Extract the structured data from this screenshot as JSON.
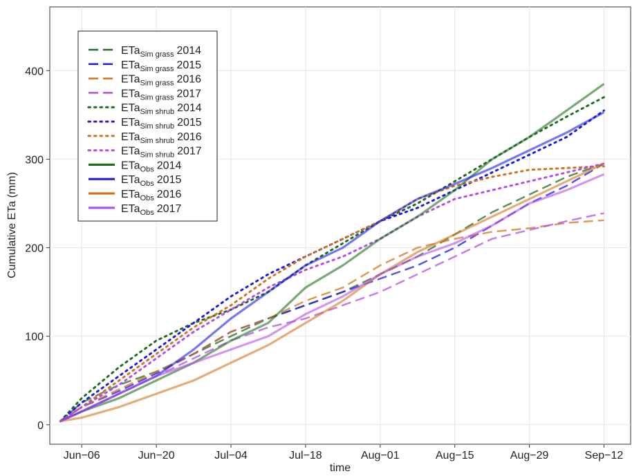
{
  "chart_data": {
    "type": "line",
    "x_label": "time",
    "y_label": "Cumulative ETa (mm)",
    "x": [
      "06-02",
      "06-06",
      "06-13",
      "06-20",
      "06-27",
      "07-04",
      "07-11",
      "07-18",
      "07-25",
      "08-01",
      "08-08",
      "08-15",
      "08-22",
      "08-29",
      "09-05",
      "09-12"
    ],
    "xlim": [
      "05-31",
      "09-17"
    ],
    "xticks": [
      {
        "value": "06-06",
        "label": "Jun−06"
      },
      {
        "value": "06-20",
        "label": "Jun−20"
      },
      {
        "value": "07-04",
        "label": "Jul−04"
      },
      {
        "value": "07-18",
        "label": "Jul−18"
      },
      {
        "value": "08-01",
        "label": "Aug−01"
      },
      {
        "value": "08-15",
        "label": "Aug−15"
      },
      {
        "value": "08-29",
        "label": "Aug−29"
      },
      {
        "value": "09-12",
        "label": "Sep−12"
      }
    ],
    "ylim": [
      -22,
      472
    ],
    "yticks": [
      0,
      100,
      200,
      300,
      400
    ],
    "grid": true,
    "legend": "top-left",
    "series": [
      {
        "name": "ETa",
        "name_sub": "Sim grass",
        "name_suffix": "2014",
        "color": "#1f6e1f",
        "style": "dashed",
        "values": [
          4,
          25,
          45,
          60,
          80,
          100,
          120,
          135,
          150,
          170,
          190,
          215,
          240,
          260,
          280,
          295
        ]
      },
      {
        "name": "ETa",
        "name_sub": "Sim grass",
        "name_suffix": "2015",
        "color": "#1c1ce6",
        "style": "dashed",
        "values": [
          4,
          20,
          38,
          58,
          80,
          105,
          120,
          135,
          150,
          165,
          180,
          200,
          225,
          250,
          270,
          295
        ]
      },
      {
        "name": "ETa",
        "name_sub": "Sim grass",
        "name_suffix": "2016",
        "color": "#d2741e",
        "style": "dashed",
        "values": [
          4,
          20,
          40,
          60,
          80,
          105,
          120,
          140,
          155,
          180,
          200,
          210,
          218,
          222,
          228,
          231
        ]
      },
      {
        "name": "ETa",
        "name_sub": "Sim grass",
        "name_suffix": "2017",
        "color": "#b44ee6",
        "style": "dashed",
        "values": [
          4,
          15,
          35,
          55,
          75,
          95,
          110,
          120,
          135,
          150,
          170,
          190,
          210,
          220,
          230,
          239
        ]
      },
      {
        "name": "ETa",
        "name_sub": "Sim shrub",
        "name_suffix": "2014",
        "color": "#1f6e1f",
        "style": "dotted",
        "values": [
          4,
          30,
          65,
          95,
          115,
          130,
          150,
          180,
          205,
          230,
          250,
          275,
          300,
          325,
          348,
          370
        ]
      },
      {
        "name": "ETa",
        "name_sub": "Sim shrub",
        "name_suffix": "2015",
        "color": "#1c1ce6",
        "style": "dotted",
        "values": [
          4,
          25,
          55,
          85,
          115,
          145,
          170,
          190,
          210,
          230,
          245,
          265,
          285,
          305,
          325,
          355
        ]
      },
      {
        "name": "ETa",
        "name_sub": "Sim shrub",
        "name_suffix": "2016",
        "color": "#d2741e",
        "style": "dotted",
        "values": [
          4,
          20,
          50,
          80,
          110,
          135,
          165,
          190,
          210,
          230,
          255,
          270,
          280,
          288,
          290,
          292
        ]
      },
      {
        "name": "ETa",
        "name_sub": "Sim shrub",
        "name_suffix": "2017",
        "color": "#b44ee6",
        "style": "dotted",
        "values": [
          4,
          20,
          45,
          75,
          105,
          130,
          155,
          175,
          190,
          210,
          235,
          255,
          265,
          275,
          285,
          295
        ]
      },
      {
        "name": "ETa",
        "name_sub": "Obs",
        "name_suffix": "2014",
        "color": "#1f6e1f",
        "style": "solid",
        "values": [
          4,
          15,
          30,
          50,
          70,
          95,
          115,
          155,
          180,
          210,
          235,
          265,
          300,
          325,
          355,
          385
        ]
      },
      {
        "name": "ETa",
        "name_sub": "Obs",
        "name_suffix": "2015",
        "color": "#1c1ce6",
        "style": "solid",
        "values": [
          4,
          15,
          35,
          55,
          85,
          120,
          150,
          180,
          200,
          230,
          255,
          272,
          290,
          310,
          330,
          353
        ]
      },
      {
        "name": "ETa",
        "name_sub": "Obs",
        "name_suffix": "2016",
        "color": "#d2741e",
        "style": "solid",
        "values": [
          4,
          8,
          20,
          35,
          50,
          70,
          90,
          115,
          140,
          170,
          195,
          215,
          235,
          255,
          275,
          295
        ]
      },
      {
        "name": "ETa",
        "name_sub": "Obs",
        "name_suffix": "2017",
        "color": "#b44ee6",
        "style": "solid",
        "values": [
          4,
          15,
          35,
          55,
          70,
          85,
          100,
          125,
          145,
          170,
          190,
          205,
          225,
          250,
          265,
          283
        ]
      }
    ]
  }
}
